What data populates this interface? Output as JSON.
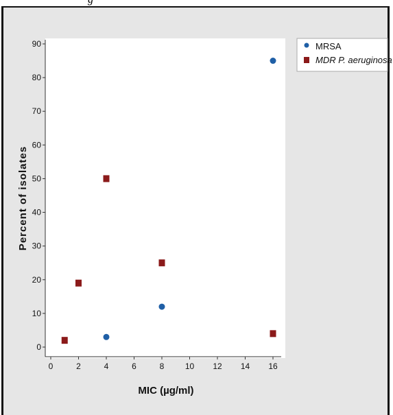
{
  "caption_fragment": "g",
  "chart_data": {
    "type": "scatter",
    "title": "",
    "xlabel": "MIC (µg/ml)",
    "ylabel": "Percent of isolates",
    "xlim": [
      0,
      16
    ],
    "ylim": [
      0,
      90
    ],
    "xticks": [
      0,
      2,
      4,
      6,
      8,
      10,
      12,
      14,
      16
    ],
    "yticks": [
      0,
      10,
      20,
      30,
      40,
      50,
      60,
      70,
      80,
      90
    ],
    "grid": false,
    "legend_position": "top-right, outside plot",
    "series": [
      {
        "name": "MRSA",
        "italic": false,
        "marker": "circle",
        "color": "#1f5fa6",
        "points": [
          [
            4,
            3
          ],
          [
            8,
            12
          ],
          [
            16,
            85
          ]
        ]
      },
      {
        "name": "MDR P. aeruginosa",
        "italic": true,
        "marker": "square",
        "color": "#8b1a1a",
        "points": [
          [
            1,
            2
          ],
          [
            2,
            19
          ],
          [
            4,
            50
          ],
          [
            8,
            25
          ],
          [
            16,
            4
          ]
        ]
      }
    ]
  }
}
